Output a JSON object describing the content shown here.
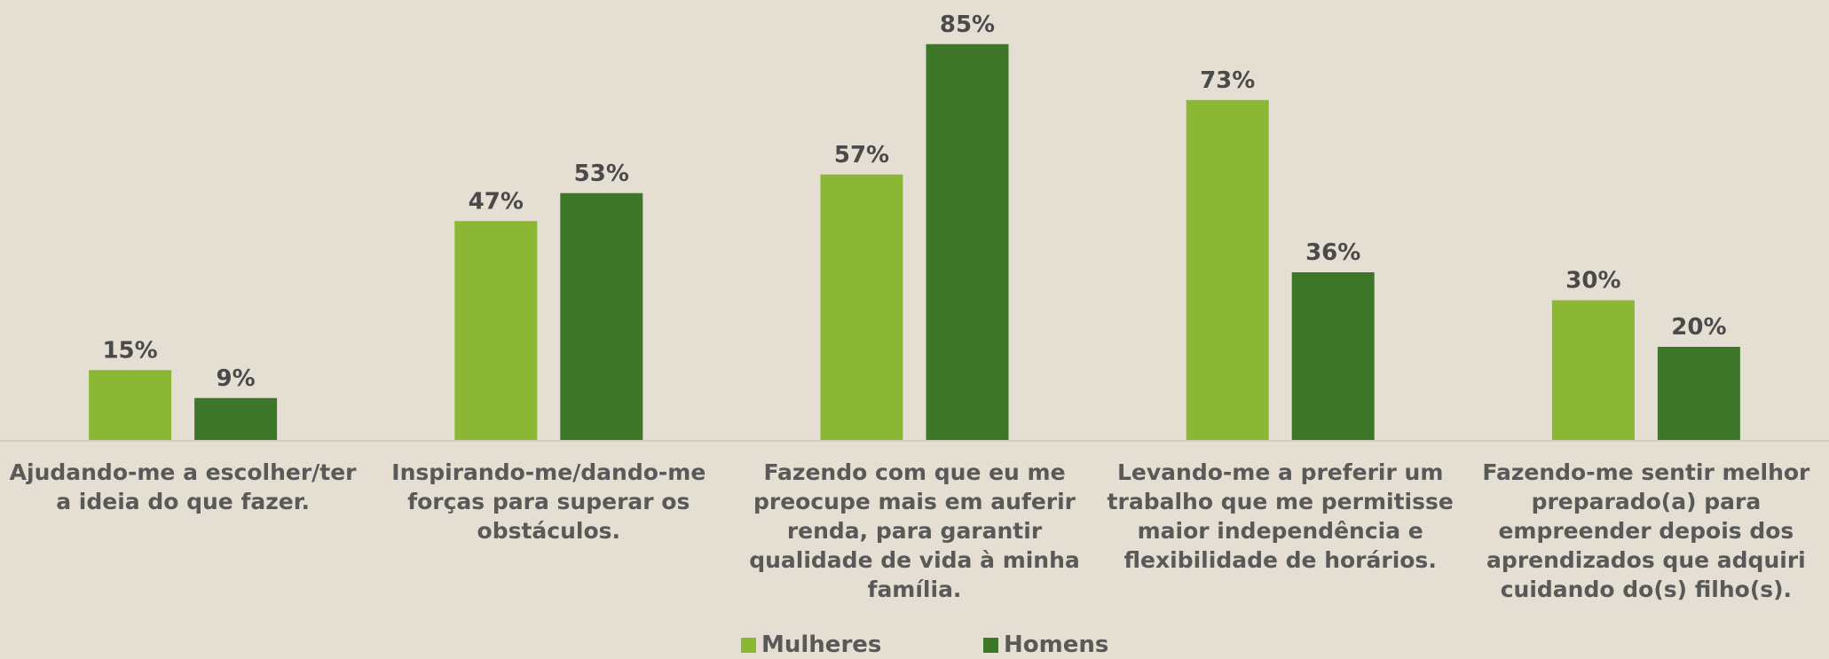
{
  "chart_data": {
    "type": "bar",
    "categories": [
      "Ajudando-me a escolher/ter a ideia do que fazer.",
      "Inspirando-me/dando-me forças para superar os obstáculos.",
      "Fazendo com que eu me preocupe mais em auferir renda, para garantir qualidade de vida à minha família.",
      "Levando-me a preferir um trabalho que me permitisse maior independência e flexibilidade de horários.",
      "Fazendo-me sentir melhor preparado(a) para empreender depois dos aprendizados que adquiri cuidando do(s) filho(s)."
    ],
    "series": [
      {
        "name": "Mulheres",
        "color": "#8bb735",
        "values": [
          15,
          47,
          57,
          73,
          30
        ],
        "value_labels": [
          "15%",
          "47%",
          "57%",
          "73%",
          "30%"
        ]
      },
      {
        "name": "Homens",
        "color": "#3f772a",
        "values": [
          9,
          53,
          85,
          36,
          20
        ],
        "value_labels": [
          "9%",
          "53%",
          "85%",
          "36%",
          "20%"
        ]
      }
    ],
    "legend": "bottom"
  }
}
